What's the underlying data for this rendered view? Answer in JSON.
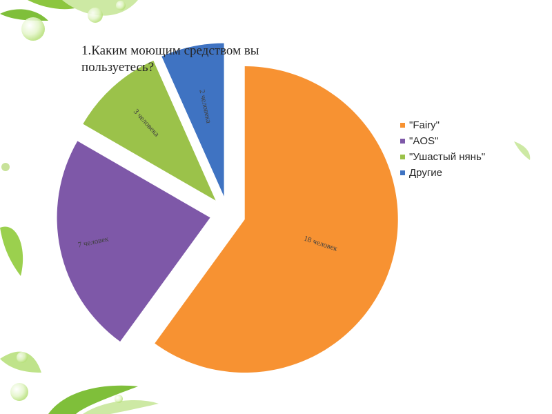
{
  "chart_data": {
    "type": "pie",
    "title": "1.Каким моющим средством вы пользуетесь?",
    "legend_position": "right",
    "exploded": true,
    "slices": [
      {
        "name": "\"Fairy\"",
        "value": 18,
        "label": "18 человек",
        "color": "#f79232"
      },
      {
        "name": "\"AOS\"",
        "value": 7,
        "label": "7 человек",
        "color": "#7e58a8"
      },
      {
        "name": "\"Ушастый нянь\"",
        "value": 3,
        "label": "3 человека",
        "color": "#9bc24a"
      },
      {
        "name": "Другие",
        "value": 2,
        "label": "2 человека",
        "color": "#3f73c2"
      }
    ]
  }
}
